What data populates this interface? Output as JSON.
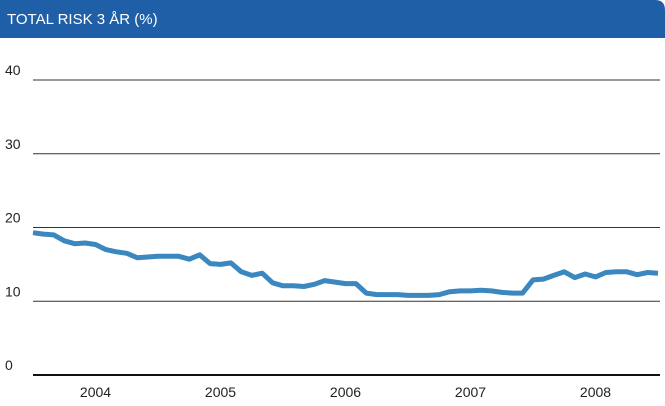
{
  "chart_data": {
    "type": "line",
    "title": "TOTAL RISK 3 ÅR (%)",
    "categories": [
      null,
      null,
      null,
      null,
      null,
      null,
      "2004",
      null,
      null,
      null,
      null,
      null,
      null,
      null,
      null,
      null,
      null,
      null,
      "2005",
      null,
      null,
      null,
      null,
      null,
      null,
      null,
      null,
      null,
      null,
      null,
      "2006",
      null,
      null,
      null,
      null,
      null,
      null,
      null,
      null,
      null,
      null,
      null,
      "2007",
      null,
      null,
      null,
      null,
      null,
      null,
      null,
      null,
      null,
      null,
      null,
      "2008",
      null,
      null,
      null,
      null,
      null,
      null
    ],
    "series": [
      {
        "color": "#3b87c0",
        "values": [
          19.3,
          19.1,
          19.0,
          18.2,
          17.8,
          17.9,
          17.7,
          17.0,
          16.7,
          16.5,
          15.9,
          16.0,
          16.1,
          16.1,
          16.1,
          15.7,
          16.3,
          15.1,
          15.0,
          15.2,
          14.0,
          13.5,
          13.8,
          12.5,
          12.1,
          12.1,
          12.0,
          12.3,
          12.8,
          12.6,
          12.4,
          12.4,
          11.1,
          10.9,
          10.9,
          10.9,
          10.8,
          10.8,
          10.8,
          10.9,
          11.3,
          11.4,
          11.4,
          11.5,
          11.4,
          11.2,
          11.1,
          11.1,
          12.9,
          13.0,
          13.5,
          14.0,
          13.2,
          13.7,
          13.3,
          13.9,
          14.0,
          14.0,
          13.6,
          13.9,
          13.8
        ]
      }
    ],
    "ylim": [
      0,
      40
    ],
    "yticks": [
      0,
      10,
      20,
      30,
      40
    ],
    "grid": true
  }
}
